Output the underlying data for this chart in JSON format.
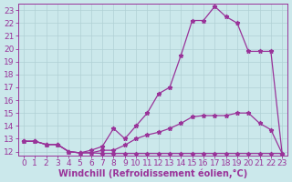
{
  "xlabel": "Windchill (Refroidissement éolien,°C)",
  "bg_color": "#cbe8eb",
  "line_color": "#993399",
  "grid_color": "#b0d0d5",
  "xlim": [
    -0.5,
    23.5
  ],
  "ylim": [
    11.7,
    23.5
  ],
  "xticks": [
    0,
    1,
    2,
    3,
    4,
    5,
    6,
    7,
    8,
    9,
    10,
    11,
    12,
    13,
    14,
    15,
    16,
    17,
    18,
    19,
    20,
    21,
    22,
    23
  ],
  "yticks": [
    12,
    13,
    14,
    15,
    16,
    17,
    18,
    19,
    20,
    21,
    22,
    23
  ],
  "line1_x": [
    0,
    1,
    2,
    3,
    4,
    5,
    6,
    7,
    8,
    9,
    10,
    11,
    12,
    13,
    14,
    15,
    16,
    17,
    18,
    19,
    20,
    21,
    22,
    23
  ],
  "line1_y": [
    12.8,
    12.8,
    12.55,
    12.55,
    12.0,
    11.9,
    11.9,
    11.85,
    11.85,
    11.85,
    11.85,
    11.85,
    11.85,
    11.85,
    11.85,
    11.85,
    11.85,
    11.85,
    11.85,
    11.85,
    11.85,
    11.85,
    11.85,
    11.85
  ],
  "line2_x": [
    0,
    1,
    2,
    3,
    4,
    5,
    6,
    7,
    8,
    9,
    10,
    11,
    12,
    13,
    14,
    15,
    16,
    17,
    18,
    19,
    20,
    21,
    22,
    23
  ],
  "line2_y": [
    12.8,
    12.8,
    12.55,
    12.55,
    12.0,
    11.9,
    11.9,
    12.1,
    12.1,
    12.5,
    13.0,
    13.3,
    13.5,
    13.8,
    14.2,
    14.7,
    14.8,
    14.8,
    14.8,
    15.0,
    15.0,
    14.2,
    13.7,
    11.85
  ],
  "line3_x": [
    0,
    1,
    2,
    3,
    4,
    5,
    6,
    7,
    8,
    9,
    10,
    11,
    12,
    13,
    14,
    15,
    16,
    17,
    18,
    19,
    20,
    21,
    22,
    23
  ],
  "line3_y": [
    12.8,
    12.8,
    12.55,
    12.55,
    12.0,
    11.9,
    12.1,
    12.4,
    13.8,
    13.0,
    14.0,
    15.0,
    16.5,
    17.0,
    19.5,
    22.2,
    22.2,
    23.3,
    22.5,
    22.0,
    19.8,
    19.8,
    19.8,
    11.85
  ],
  "xlabel_fontsize": 7,
  "tick_fontsize": 6.5,
  "marker": "*",
  "markersize": 3.5,
  "linewidth": 0.9
}
